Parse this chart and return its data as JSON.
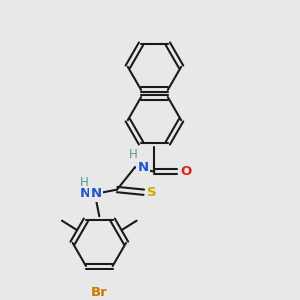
{
  "background_color": "#e8e8e8",
  "bond_color": "#1a1a1a",
  "line_width": 1.5,
  "figsize": [
    3.0,
    3.0
  ],
  "dpi": 100,
  "label_N1": {
    "text": "N",
    "color": "#2255cc",
    "fontsize": 9.5
  },
  "label_H1": {
    "text": "H",
    "color": "#559999",
    "fontsize": 9.5
  },
  "label_N2": {
    "text": "N",
    "color": "#2255cc",
    "fontsize": 9.5
  },
  "label_H2": {
    "text": "H",
    "color": "#559999",
    "fontsize": 9.5
  },
  "label_O": {
    "text": "O",
    "color": "#dd2222",
    "fontsize": 9.5
  },
  "label_S": {
    "text": "S",
    "color": "#ccaa00",
    "fontsize": 10
  },
  "label_Br": {
    "text": "Br",
    "color": "#cc7700",
    "fontsize": 9.5
  }
}
